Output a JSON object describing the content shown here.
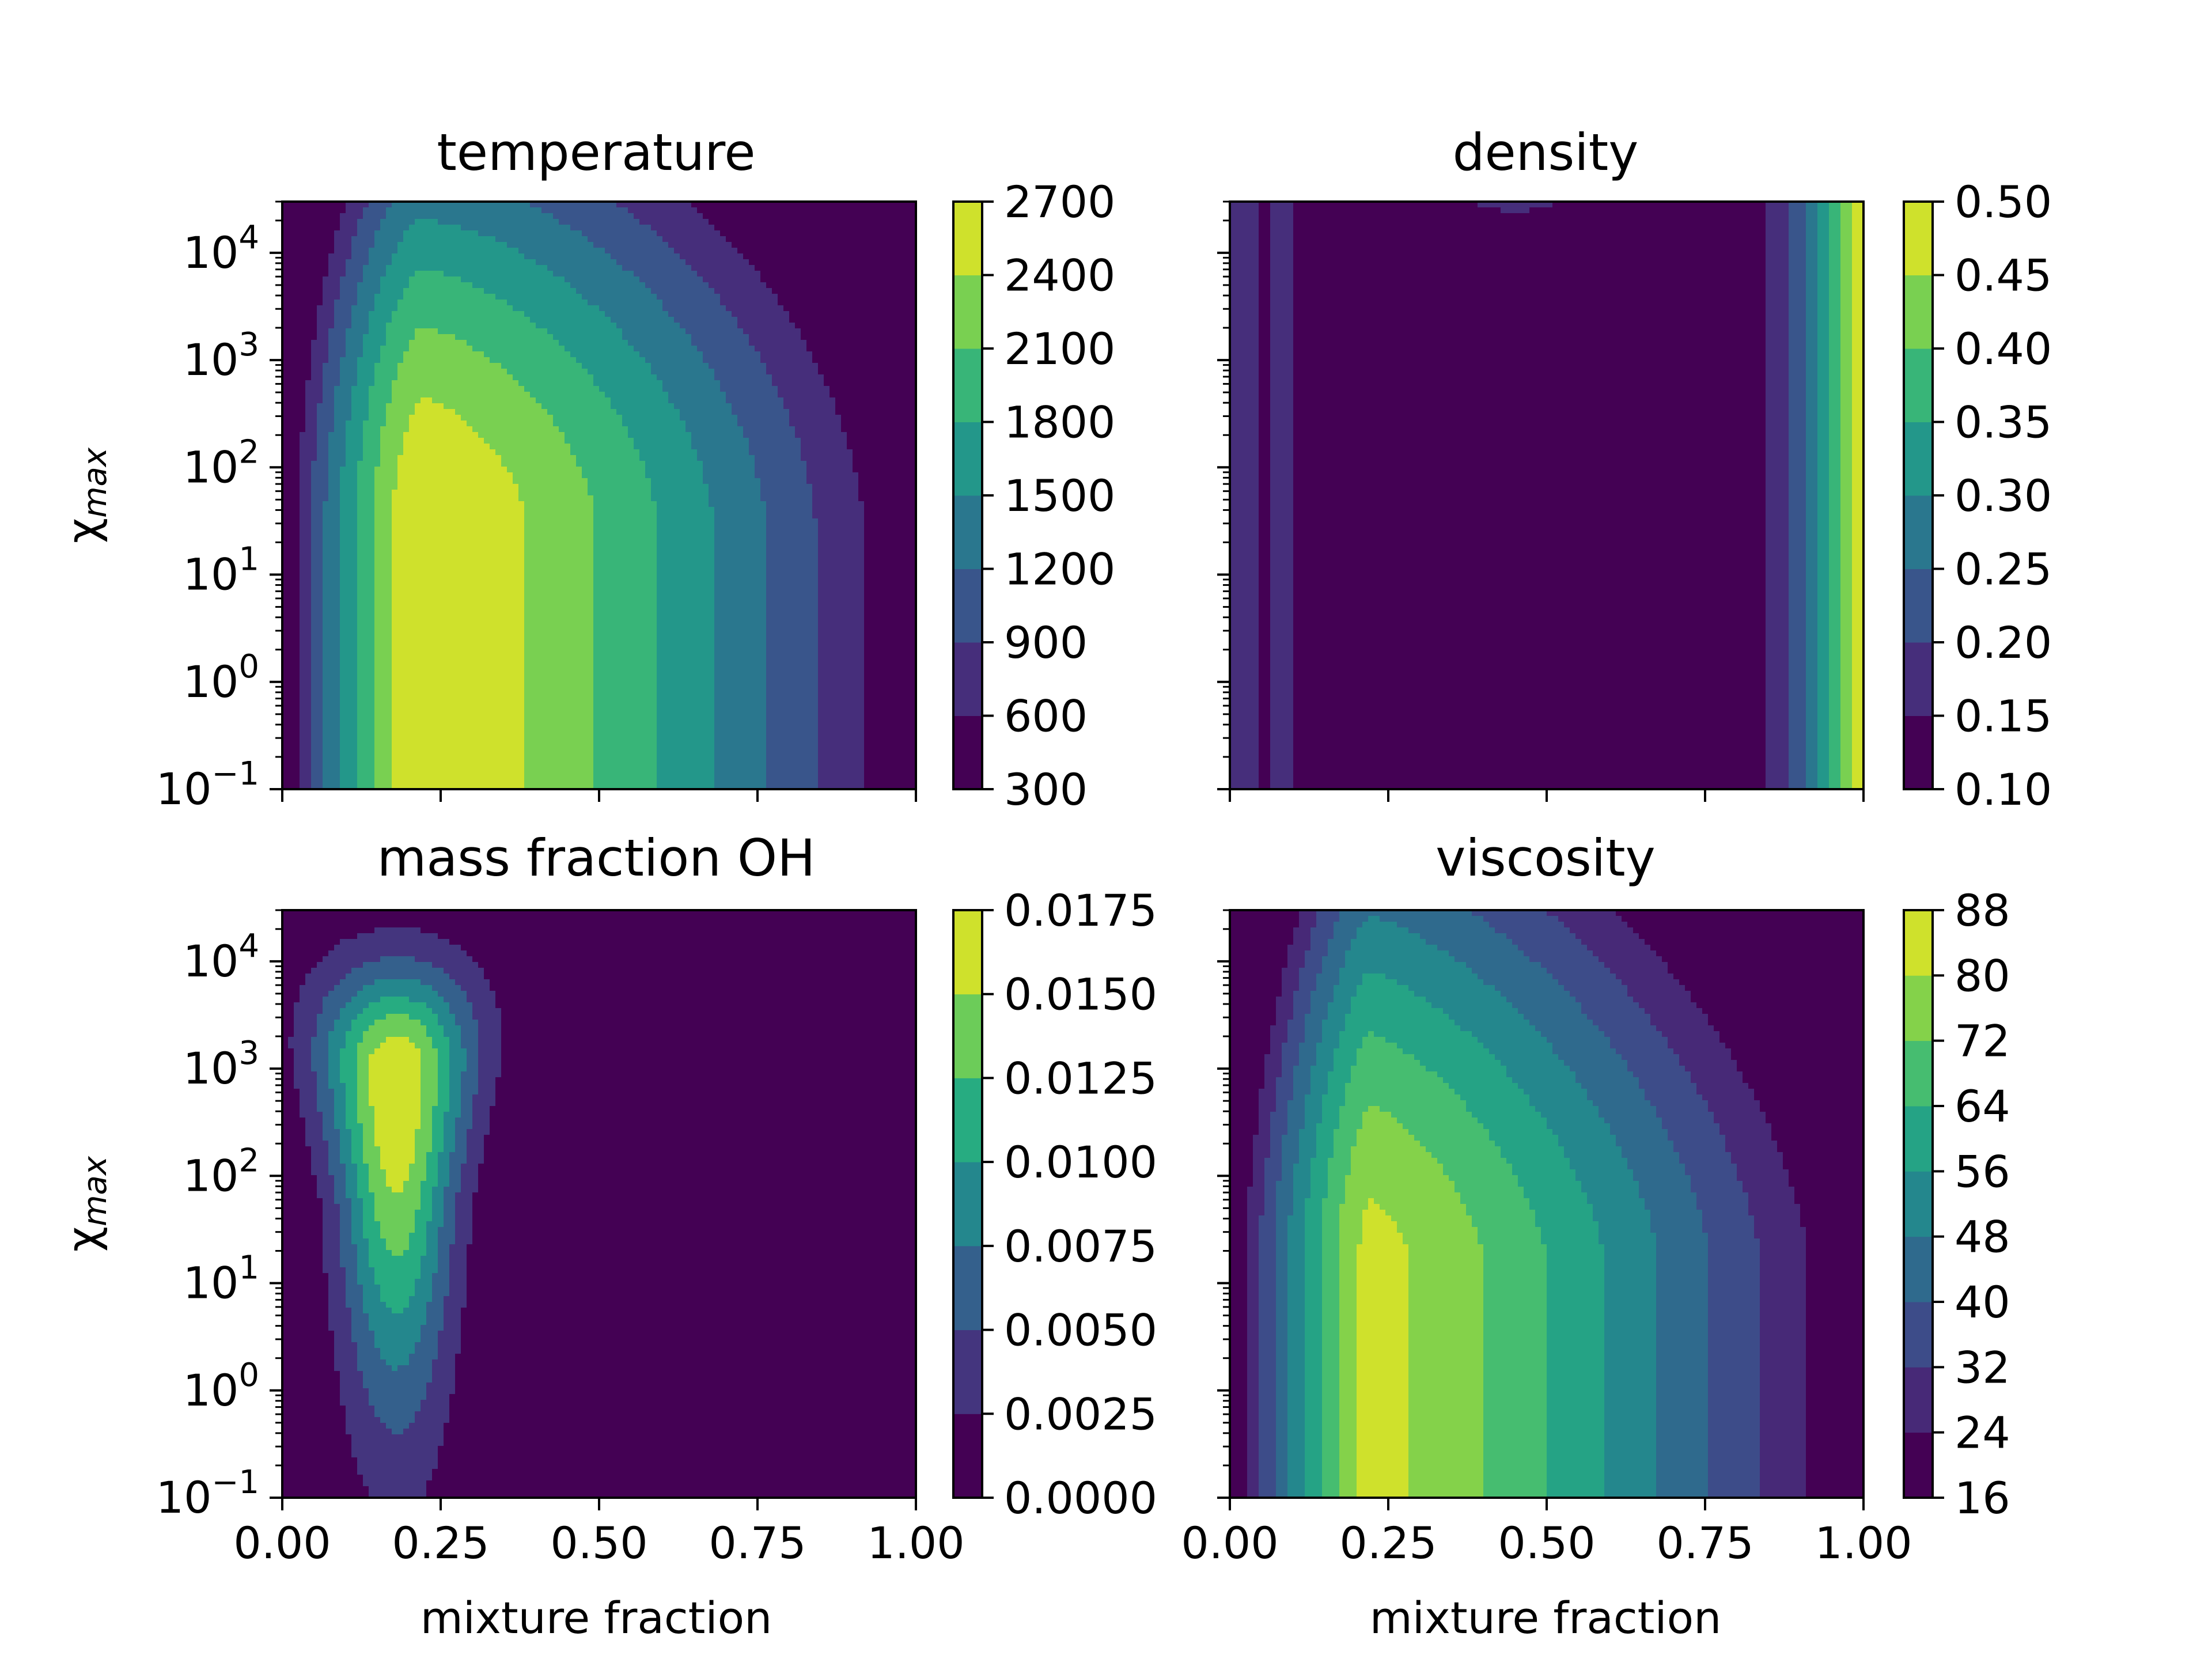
{
  "chart_data": [
    {
      "type": "contour",
      "title": "temperature",
      "xlabel": "",
      "ylabel": "χmax",
      "xlim": [
        0,
        1
      ],
      "ylim": [
        0.1,
        30000
      ],
      "yscale": "log",
      "xticks": [],
      "yticks": [
        {
          "base": "10",
          "exp": "−1"
        },
        {
          "base": "10",
          "exp": "0"
        },
        {
          "base": "10",
          "exp": "1"
        },
        {
          "base": "10",
          "exp": "2"
        },
        {
          "base": "10",
          "exp": "3"
        },
        {
          "base": "10",
          "exp": "4"
        }
      ],
      "levels": [
        "300",
        "600",
        "900",
        "1200",
        "1500",
        "1800",
        "2100",
        "2400",
        "2700"
      ],
      "peak": {
        "x": 0.22,
        "y": 0.1,
        "value": 2700
      },
      "boundaries": [
        0.0,
        0.05,
        0.14,
        0.34,
        0.44,
        0.72,
        0.81,
        0.91,
        1.0
      ]
    },
    {
      "type": "contour",
      "title": "density",
      "xlabel": "",
      "ylabel": "",
      "xlim": [
        0,
        1
      ],
      "ylim": [
        0.1,
        30000
      ],
      "yscale": "log",
      "xticks": [],
      "yticks": [],
      "levels": [
        "0.10",
        "0.15",
        "0.20",
        "0.25",
        "0.30",
        "0.35",
        "0.40",
        "0.45",
        "0.50"
      ],
      "boundaries": [
        0.0,
        0.04,
        0.1,
        0.76,
        0.86,
        0.94,
        0.96,
        0.98,
        1.0
      ]
    },
    {
      "type": "contour",
      "title": "mass fraction OH",
      "xlabel": "mixture fraction",
      "ylabel": "χmax",
      "xlim": [
        0,
        1
      ],
      "ylim": [
        0.1,
        30000
      ],
      "yscale": "log",
      "xticks": [
        "0.00",
        "0.25",
        "0.50",
        "0.75",
        "1.00"
      ],
      "yticks": [
        {
          "base": "10",
          "exp": "−1"
        },
        {
          "base": "10",
          "exp": "0"
        },
        {
          "base": "10",
          "exp": "1"
        },
        {
          "base": "10",
          "exp": "2"
        },
        {
          "base": "10",
          "exp": "3"
        },
        {
          "base": "10",
          "exp": "4"
        }
      ],
      "levels": [
        "0.0000",
        "0.0025",
        "0.0050",
        "0.0075",
        "0.0100",
        "0.0125",
        "0.0150",
        "0.0175"
      ],
      "peak": {
        "x": 0.18,
        "y": 1000,
        "value": 0.016
      }
    },
    {
      "type": "contour",
      "title": "viscosity",
      "xlabel": "mixture fraction",
      "ylabel": "",
      "xlim": [
        0,
        1
      ],
      "ylim": [
        0.1,
        30000
      ],
      "yscale": "log",
      "xticks": [
        "0.00",
        "0.25",
        "0.50",
        "0.75",
        "1.00"
      ],
      "yticks": [],
      "levels": [
        "16",
        "24",
        "32",
        "40",
        "48",
        "56",
        "64",
        "72",
        "80",
        "88"
      ],
      "peak": {
        "x": 0.21,
        "y": 0.1,
        "value": 84
      },
      "boundaries": [
        0.0,
        0.06,
        0.11,
        0.37,
        0.47,
        0.58,
        0.67,
        0.77,
        0.85,
        0.93,
        1.0
      ]
    }
  ]
}
